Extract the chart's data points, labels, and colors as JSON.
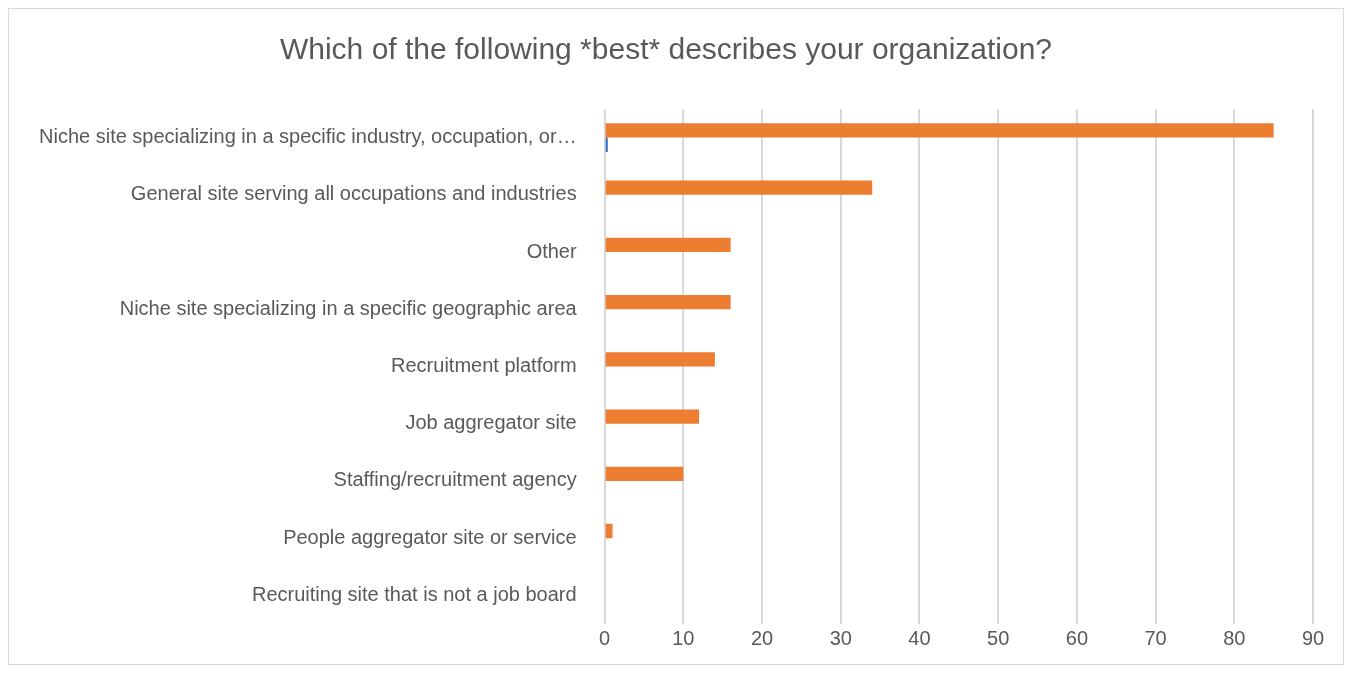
{
  "chart_data": {
    "type": "bar",
    "orientation": "horizontal",
    "title": "Which of the following *best* describes your organization?",
    "categories": [
      "Niche site specializing in a specific industry, occupation, or…",
      "General site serving all occupations and industries",
      "Other",
      "Niche site specializing in a specific geographic area",
      "Recruitment platform",
      "Job aggregator site",
      "Staffing/recruitment agency",
      "People aggregator site or service",
      "Recruiting site that is not a job board"
    ],
    "series": [
      {
        "color": "#ed7d31",
        "values": [
          85,
          34,
          16,
          16,
          14,
          12,
          10,
          1,
          0
        ]
      },
      {
        "color": "#4472c4",
        "values": [
          0.4,
          null,
          0,
          0,
          0,
          0,
          0,
          0,
          0
        ]
      }
    ],
    "xlim": [
      0,
      90
    ],
    "xticks": [
      0,
      10,
      20,
      30,
      40,
      50,
      60,
      70,
      80,
      90
    ],
    "grid": "x",
    "legend": false
  }
}
